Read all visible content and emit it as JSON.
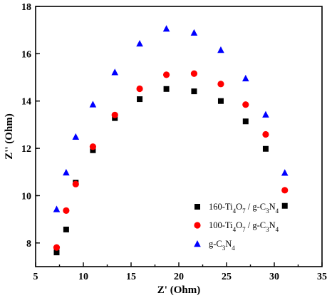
{
  "chart_data": {
    "type": "scatter",
    "xlabel": "Z' (Ohm)",
    "ylabel": "Z'' (Ohm)",
    "xlim": [
      5,
      35
    ],
    "ylim": [
      7,
      18
    ],
    "xticks": [
      5,
      10,
      15,
      20,
      25,
      30,
      35
    ],
    "yticks": [
      8,
      10,
      12,
      14,
      16,
      18
    ],
    "grid": false,
    "legend_position": "bottom-right",
    "series": [
      {
        "name": "160-Ti4O7 / g-C3N4",
        "marker": "square",
        "color": "#000000",
        "x": [
          7.2,
          8.2,
          9.2,
          11.0,
          13.3,
          15.9,
          18.7,
          21.6,
          24.4,
          27.0,
          29.1,
          31.1
        ],
        "y": [
          7.6,
          8.57,
          10.55,
          11.92,
          13.28,
          14.08,
          14.51,
          14.41,
          14.0,
          13.14,
          11.98,
          9.57
        ]
      },
      {
        "name": "100-Ti4O7 / g-C3N4",
        "marker": "circle",
        "color": "#ff0000",
        "x": [
          7.2,
          8.2,
          9.2,
          11.0,
          13.3,
          15.9,
          18.7,
          21.6,
          24.4,
          27.0,
          29.1,
          31.1
        ],
        "y": [
          7.81,
          9.37,
          10.49,
          12.07,
          13.41,
          14.52,
          15.11,
          15.16,
          14.72,
          13.85,
          12.59,
          10.23
        ]
      },
      {
        "name": "g-C3N4",
        "marker": "triangle",
        "color": "#0000ff",
        "x": [
          7.2,
          8.2,
          9.2,
          11.0,
          13.3,
          15.9,
          18.7,
          21.6,
          24.4,
          27.0,
          29.1,
          31.1
        ],
        "y": [
          9.43,
          10.98,
          12.49,
          13.86,
          15.22,
          16.43,
          17.06,
          16.89,
          16.16,
          14.96,
          13.43,
          10.97
        ]
      }
    ]
  }
}
